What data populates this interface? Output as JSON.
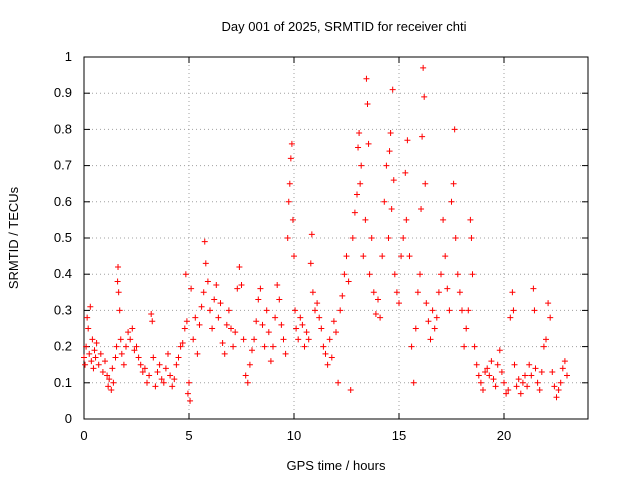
{
  "chart_data": {
    "type": "scatter",
    "title": "Day 001 of 2025, SRMTID for receiver chti",
    "xlabel": "GPS time / hours",
    "ylabel": "SRMTID / TECUs",
    "xlim": [
      0,
      24
    ],
    "ylim": [
      0,
      1
    ],
    "xticks": [
      0,
      5,
      10,
      15,
      20
    ],
    "xtick_labels": [
      "0",
      "5",
      "10",
      "15",
      "20"
    ],
    "yticks": [
      0,
      0.1,
      0.2,
      0.3,
      0.4,
      0.5,
      0.6,
      0.7,
      0.8,
      0.9,
      1
    ],
    "ytick_labels": [
      "0",
      "0.1",
      "0.2",
      "0.3",
      "0.4",
      "0.5",
      "0.6",
      "0.7",
      "0.8",
      "0.9",
      "1"
    ],
    "grid": true,
    "marker": "+",
    "color": "#ff0000",
    "series": [
      {
        "name": "SRMTID",
        "points": [
          [
            0.0,
            0.17
          ],
          [
            0.05,
            0.15
          ],
          [
            0.1,
            0.2
          ],
          [
            0.15,
            0.28
          ],
          [
            0.2,
            0.25
          ],
          [
            0.25,
            0.18
          ],
          [
            0.3,
            0.31
          ],
          [
            0.35,
            0.16
          ],
          [
            0.4,
            0.22
          ],
          [
            0.45,
            0.14
          ],
          [
            0.5,
            0.19
          ],
          [
            0.55,
            0.17
          ],
          [
            0.6,
            0.21
          ],
          [
            0.7,
            0.15
          ],
          [
            0.8,
            0.18
          ],
          [
            0.9,
            0.13
          ],
          [
            1.0,
            0.16
          ],
          [
            1.1,
            0.12
          ],
          [
            1.15,
            0.09
          ],
          [
            1.2,
            0.11
          ],
          [
            1.3,
            0.08
          ],
          [
            1.35,
            0.14
          ],
          [
            1.4,
            0.1
          ],
          [
            1.5,
            0.17
          ],
          [
            1.55,
            0.2
          ],
          [
            1.6,
            0.38
          ],
          [
            1.62,
            0.42
          ],
          [
            1.65,
            0.35
          ],
          [
            1.7,
            0.3
          ],
          [
            1.75,
            0.22
          ],
          [
            1.8,
            0.18
          ],
          [
            1.9,
            0.15
          ],
          [
            2.0,
            0.2
          ],
          [
            2.1,
            0.24
          ],
          [
            2.2,
            0.22
          ],
          [
            2.3,
            0.25
          ],
          [
            2.4,
            0.19
          ],
          [
            2.5,
            0.2
          ],
          [
            2.6,
            0.17
          ],
          [
            2.7,
            0.15
          ],
          [
            2.8,
            0.13
          ],
          [
            2.9,
            0.14
          ],
          [
            3.0,
            0.1
          ],
          [
            3.1,
            0.12
          ],
          [
            3.2,
            0.29
          ],
          [
            3.25,
            0.27
          ],
          [
            3.3,
            0.17
          ],
          [
            3.4,
            0.09
          ],
          [
            3.5,
            0.13
          ],
          [
            3.6,
            0.15
          ],
          [
            3.7,
            0.11
          ],
          [
            3.8,
            0.1
          ],
          [
            3.9,
            0.14
          ],
          [
            4.0,
            0.18
          ],
          [
            4.1,
            0.12
          ],
          [
            4.2,
            0.09
          ],
          [
            4.3,
            0.11
          ],
          [
            4.4,
            0.15
          ],
          [
            4.5,
            0.17
          ],
          [
            4.6,
            0.2
          ],
          [
            4.7,
            0.21
          ],
          [
            4.8,
            0.25
          ],
          [
            4.85,
            0.4
          ],
          [
            4.9,
            0.27
          ],
          [
            4.95,
            0.07
          ],
          [
            5.0,
            0.1
          ],
          [
            5.05,
            0.05
          ],
          [
            5.1,
            0.36
          ],
          [
            5.2,
            0.22
          ],
          [
            5.3,
            0.28
          ],
          [
            5.4,
            0.18
          ],
          [
            5.5,
            0.26
          ],
          [
            5.6,
            0.31
          ],
          [
            5.7,
            0.35
          ],
          [
            5.75,
            0.49
          ],
          [
            5.8,
            0.43
          ],
          [
            5.9,
            0.38
          ],
          [
            6.0,
            0.3
          ],
          [
            6.1,
            0.25
          ],
          [
            6.2,
            0.33
          ],
          [
            6.3,
            0.37
          ],
          [
            6.4,
            0.28
          ],
          [
            6.5,
            0.32
          ],
          [
            6.6,
            0.21
          ],
          [
            6.7,
            0.18
          ],
          [
            6.8,
            0.26
          ],
          [
            6.9,
            0.3
          ],
          [
            7.0,
            0.25
          ],
          [
            7.1,
            0.2
          ],
          [
            7.2,
            0.24
          ],
          [
            7.3,
            0.36
          ],
          [
            7.4,
            0.42
          ],
          [
            7.5,
            0.37
          ],
          [
            7.6,
            0.22
          ],
          [
            7.7,
            0.12
          ],
          [
            7.8,
            0.1
          ],
          [
            7.9,
            0.15
          ],
          [
            8.0,
            0.19
          ],
          [
            8.1,
            0.22
          ],
          [
            8.2,
            0.27
          ],
          [
            8.3,
            0.33
          ],
          [
            8.4,
            0.36
          ],
          [
            8.5,
            0.26
          ],
          [
            8.6,
            0.2
          ],
          [
            8.7,
            0.3
          ],
          [
            8.8,
            0.24
          ],
          [
            8.9,
            0.16
          ],
          [
            9.0,
            0.2
          ],
          [
            9.1,
            0.28
          ],
          [
            9.2,
            0.37
          ],
          [
            9.3,
            0.33
          ],
          [
            9.4,
            0.26
          ],
          [
            9.5,
            0.22
          ],
          [
            9.6,
            0.18
          ],
          [
            9.7,
            0.5
          ],
          [
            9.75,
            0.6
          ],
          [
            9.8,
            0.65
          ],
          [
            9.85,
            0.72
          ],
          [
            9.9,
            0.76
          ],
          [
            9.95,
            0.55
          ],
          [
            10.0,
            0.45
          ],
          [
            10.05,
            0.3
          ],
          [
            10.1,
            0.25
          ],
          [
            10.2,
            0.22
          ],
          [
            10.3,
            0.28
          ],
          [
            10.4,
            0.26
          ],
          [
            10.5,
            0.2
          ],
          [
            10.6,
            0.24
          ],
          [
            10.7,
            0.22
          ],
          [
            10.8,
            0.43
          ],
          [
            10.85,
            0.51
          ],
          [
            10.9,
            0.35
          ],
          [
            11.0,
            0.3
          ],
          [
            11.1,
            0.32
          ],
          [
            11.2,
            0.28
          ],
          [
            11.3,
            0.25
          ],
          [
            11.4,
            0.2
          ],
          [
            11.5,
            0.18
          ],
          [
            11.6,
            0.15
          ],
          [
            11.7,
            0.22
          ],
          [
            11.8,
            0.17
          ],
          [
            11.9,
            0.27
          ],
          [
            12.0,
            0.24
          ],
          [
            12.1,
            0.1
          ],
          [
            12.2,
            0.3
          ],
          [
            12.3,
            0.34
          ],
          [
            12.4,
            0.4
          ],
          [
            12.5,
            0.45
          ],
          [
            12.6,
            0.38
          ],
          [
            12.7,
            0.08
          ],
          [
            12.8,
            0.5
          ],
          [
            12.9,
            0.57
          ],
          [
            13.0,
            0.62
          ],
          [
            13.05,
            0.75
          ],
          [
            13.1,
            0.79
          ],
          [
            13.15,
            0.65
          ],
          [
            13.2,
            0.7
          ],
          [
            13.3,
            0.45
          ],
          [
            13.4,
            0.55
          ],
          [
            13.45,
            0.94
          ],
          [
            13.5,
            0.87
          ],
          [
            13.55,
            0.76
          ],
          [
            13.6,
            0.4
          ],
          [
            13.7,
            0.5
          ],
          [
            13.8,
            0.35
          ],
          [
            13.9,
            0.29
          ],
          [
            14.0,
            0.33
          ],
          [
            14.1,
            0.28
          ],
          [
            14.2,
            0.45
          ],
          [
            14.3,
            0.6
          ],
          [
            14.4,
            0.7
          ],
          [
            14.5,
            0.5
          ],
          [
            14.55,
            0.74
          ],
          [
            14.6,
            0.79
          ],
          [
            14.65,
            0.58
          ],
          [
            14.7,
            0.91
          ],
          [
            14.75,
            0.66
          ],
          [
            14.8,
            0.4
          ],
          [
            14.9,
            0.35
          ],
          [
            15.0,
            0.32
          ],
          [
            15.1,
            0.45
          ],
          [
            15.2,
            0.5
          ],
          [
            15.3,
            0.68
          ],
          [
            15.35,
            0.55
          ],
          [
            15.4,
            0.77
          ],
          [
            15.5,
            0.45
          ],
          [
            15.6,
            0.2
          ],
          [
            15.7,
            0.1
          ],
          [
            15.8,
            0.25
          ],
          [
            15.9,
            0.35
          ],
          [
            16.0,
            0.4
          ],
          [
            16.05,
            0.58
          ],
          [
            16.1,
            0.78
          ],
          [
            16.15,
            0.97
          ],
          [
            16.2,
            0.89
          ],
          [
            16.25,
            0.65
          ],
          [
            16.3,
            0.32
          ],
          [
            16.4,
            0.27
          ],
          [
            16.5,
            0.22
          ],
          [
            16.6,
            0.3
          ],
          [
            16.7,
            0.25
          ],
          [
            16.8,
            0.28
          ],
          [
            16.9,
            0.35
          ],
          [
            17.0,
            0.4
          ],
          [
            17.1,
            0.55
          ],
          [
            17.2,
            0.45
          ],
          [
            17.3,
            0.36
          ],
          [
            17.4,
            0.3
          ],
          [
            17.5,
            0.6
          ],
          [
            17.6,
            0.65
          ],
          [
            17.65,
            0.8
          ],
          [
            17.7,
            0.5
          ],
          [
            17.8,
            0.4
          ],
          [
            17.9,
            0.35
          ],
          [
            18.0,
            0.3
          ],
          [
            18.1,
            0.2
          ],
          [
            18.2,
            0.25
          ],
          [
            18.3,
            0.3
          ],
          [
            18.4,
            0.55
          ],
          [
            18.45,
            0.5
          ],
          [
            18.5,
            0.4
          ],
          [
            18.6,
            0.2
          ],
          [
            18.7,
            0.15
          ],
          [
            18.8,
            0.12
          ],
          [
            18.9,
            0.1
          ],
          [
            19.0,
            0.08
          ],
          [
            19.1,
            0.13
          ],
          [
            19.2,
            0.14
          ],
          [
            19.3,
            0.12
          ],
          [
            19.4,
            0.16
          ],
          [
            19.5,
            0.11
          ],
          [
            19.6,
            0.09
          ],
          [
            19.7,
            0.15
          ],
          [
            19.8,
            0.19
          ],
          [
            19.9,
            0.13
          ],
          [
            20.0,
            0.1
          ],
          [
            20.1,
            0.07
          ],
          [
            20.2,
            0.08
          ],
          [
            20.3,
            0.28
          ],
          [
            20.4,
            0.35
          ],
          [
            20.45,
            0.3
          ],
          [
            20.5,
            0.15
          ],
          [
            20.6,
            0.09
          ],
          [
            20.7,
            0.11
          ],
          [
            20.8,
            0.07
          ],
          [
            20.9,
            0.1
          ],
          [
            21.0,
            0.12
          ],
          [
            21.1,
            0.09
          ],
          [
            21.2,
            0.15
          ],
          [
            21.3,
            0.12
          ],
          [
            21.4,
            0.36
          ],
          [
            21.45,
            0.3
          ],
          [
            21.5,
            0.14
          ],
          [
            21.6,
            0.1
          ],
          [
            21.7,
            0.08
          ],
          [
            21.8,
            0.13
          ],
          [
            21.9,
            0.2
          ],
          [
            22.0,
            0.22
          ],
          [
            22.1,
            0.32
          ],
          [
            22.2,
            0.28
          ],
          [
            22.3,
            0.13
          ],
          [
            22.4,
            0.09
          ],
          [
            22.5,
            0.06
          ],
          [
            22.6,
            0.08
          ],
          [
            22.7,
            0.1
          ],
          [
            22.8,
            0.14
          ],
          [
            22.9,
            0.16
          ],
          [
            23.0,
            0.12
          ]
        ]
      }
    ]
  }
}
